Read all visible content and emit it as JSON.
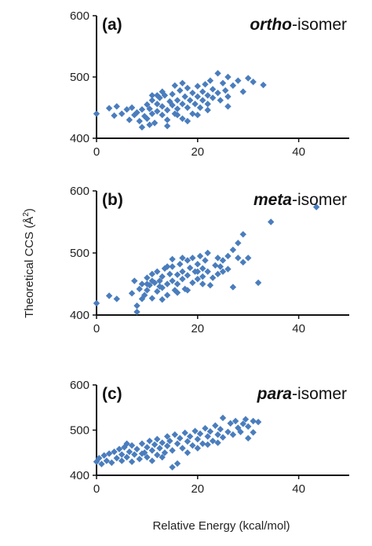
{
  "figure": {
    "xlabel": "Relative Energy (kcal/mol)",
    "ylabel_main": "Theoretical CCS (Å",
    "ylabel_sup": "2",
    "ylabel_close": ")"
  },
  "chart_data": [
    {
      "type": "scatter",
      "panel": "(a)",
      "isomer_italic": "ortho",
      "isomer_suffix": "-isomer",
      "xlim": [
        0,
        50
      ],
      "ylim": [
        400,
        600
      ],
      "xticks": [
        0,
        20,
        40
      ],
      "yticks": [
        400,
        500,
        600
      ],
      "marker_color": "#4a7dbd",
      "points": [
        [
          0,
          440
        ],
        [
          2.5,
          449
        ],
        [
          4,
          452
        ],
        [
          3.5,
          437
        ],
        [
          5,
          440
        ],
        [
          6,
          447
        ],
        [
          6.5,
          430
        ],
        [
          7,
          450
        ],
        [
          8,
          442
        ],
        [
          8.5,
          428
        ],
        [
          9,
          447
        ],
        [
          9.5,
          436
        ],
        [
          10,
          455
        ],
        [
          10,
          432
        ],
        [
          10.5,
          448
        ],
        [
          11,
          462
        ],
        [
          11,
          440
        ],
        [
          11.5,
          425
        ],
        [
          12,
          456
        ],
        [
          12,
          444
        ],
        [
          12.5,
          466
        ],
        [
          13,
          438
        ],
        [
          13,
          452
        ],
        [
          13.5,
          470
        ],
        [
          14,
          446
        ],
        [
          14,
          430
        ],
        [
          14.5,
          460
        ],
        [
          15,
          454
        ],
        [
          15,
          472
        ],
        [
          15.5,
          440
        ],
        [
          16,
          462
        ],
        [
          16,
          448
        ],
        [
          16.5,
          478
        ],
        [
          17,
          456
        ],
        [
          17,
          432
        ],
        [
          17.5,
          468
        ],
        [
          18,
          482
        ],
        [
          18,
          450
        ],
        [
          18.5,
          462
        ],
        [
          19,
          474
        ],
        [
          19,
          440
        ],
        [
          19.5,
          456
        ],
        [
          20,
          468
        ],
        [
          20,
          485
        ],
        [
          20.5,
          450
        ],
        [
          21,
          476
        ],
        [
          21,
          462
        ],
        [
          21.5,
          488
        ],
        [
          22,
          456
        ],
        [
          22,
          470
        ],
        [
          22.5,
          494
        ],
        [
          23,
          466
        ],
        [
          23,
          480
        ],
        [
          24,
          506
        ],
        [
          24,
          474
        ],
        [
          24.5,
          462
        ],
        [
          25,
          490
        ],
        [
          25.5,
          478
        ],
        [
          26,
          500
        ],
        [
          26,
          468
        ],
        [
          27,
          486
        ],
        [
          28,
          494
        ],
        [
          29,
          476
        ],
        [
          30,
          498
        ],
        [
          31,
          492
        ],
        [
          33,
          487
        ],
        [
          12,
          470
        ],
        [
          14,
          420
        ],
        [
          16,
          438
        ],
        [
          18,
          428
        ],
        [
          9,
          418
        ],
        [
          7.5,
          438
        ],
        [
          20,
          438
        ],
        [
          22,
          446
        ],
        [
          26,
          452
        ],
        [
          15.5,
          486
        ],
        [
          13,
          476
        ],
        [
          11,
          470
        ],
        [
          10.5,
          422
        ],
        [
          17,
          490
        ]
      ]
    },
    {
      "type": "scatter",
      "panel": "(b)",
      "isomer_italic": "meta",
      "isomer_suffix": "-isomer",
      "xlim": [
        0,
        50
      ],
      "ylim": [
        400,
        600
      ],
      "xticks": [
        0,
        20,
        40
      ],
      "yticks": [
        400,
        500,
        600
      ],
      "marker_color": "#4a7dbd",
      "points": [
        [
          0,
          419
        ],
        [
          2.5,
          431
        ],
        [
          4,
          426
        ],
        [
          7,
          435
        ],
        [
          7.5,
          455
        ],
        [
          8,
          415
        ],
        [
          8,
          405
        ],
        [
          8.5,
          442
        ],
        [
          9,
          450
        ],
        [
          9.5,
          432
        ],
        [
          10,
          460
        ],
        [
          10,
          440
        ],
        [
          10.5,
          448
        ],
        [
          11,
          427
        ],
        [
          11,
          466
        ],
        [
          11.5,
          452
        ],
        [
          12,
          438
        ],
        [
          12,
          470
        ],
        [
          12.5,
          455
        ],
        [
          13,
          444
        ],
        [
          13,
          462
        ],
        [
          13.5,
          475
        ],
        [
          14,
          450
        ],
        [
          14,
          432
        ],
        [
          14.5,
          466
        ],
        [
          15,
          455
        ],
        [
          15,
          478
        ],
        [
          15.5,
          440
        ],
        [
          16,
          465
        ],
        [
          16,
          450
        ],
        [
          16.5,
          482
        ],
        [
          17,
          458
        ],
        [
          17,
          470
        ],
        [
          17.5,
          442
        ],
        [
          18,
          488
        ],
        [
          18,
          464
        ],
        [
          18.5,
          476
        ],
        [
          19,
          452
        ],
        [
          19,
          492
        ],
        [
          19.5,
          470
        ],
        [
          20,
          482
        ],
        [
          20,
          458
        ],
        [
          20.5,
          495
        ],
        [
          21,
          475
        ],
        [
          21,
          462
        ],
        [
          21.5,
          488
        ],
        [
          22,
          470
        ],
        [
          22.5,
          448
        ],
        [
          23,
          460
        ],
        [
          23.5,
          480
        ],
        [
          24,
          466
        ],
        [
          24,
          492
        ],
        [
          25,
          470
        ],
        [
          25,
          488
        ],
        [
          26,
          495
        ],
        [
          26,
          474
        ],
        [
          27,
          505
        ],
        [
          28,
          516
        ],
        [
          28,
          492
        ],
        [
          29,
          530
        ],
        [
          29,
          485
        ],
        [
          30,
          492
        ],
        [
          27,
          445
        ],
        [
          32,
          452
        ],
        [
          34.5,
          550
        ],
        [
          43.5,
          574
        ],
        [
          13,
          425
        ],
        [
          9,
          426
        ],
        [
          15,
          490
        ],
        [
          18,
          440
        ],
        [
          11,
          455
        ],
        [
          14,
          478
        ],
        [
          17,
          492
        ],
        [
          22,
          500
        ],
        [
          20,
          470
        ],
        [
          12.5,
          446
        ],
        [
          10,
          450
        ],
        [
          16,
          436
        ],
        [
          21,
          450
        ],
        [
          24.5,
          478
        ]
      ]
    },
    {
      "type": "scatter",
      "panel": "(c)",
      "isomer_italic": "para",
      "isomer_suffix": "-isomer",
      "xlim": [
        0,
        50
      ],
      "ylim": [
        400,
        600
      ],
      "xticks": [
        0,
        20,
        40
      ],
      "yticks": [
        400,
        500,
        600
      ],
      "marker_color": "#4a7dbd",
      "points": [
        [
          0,
          430
        ],
        [
          0.5,
          438
        ],
        [
          1,
          425
        ],
        [
          1.5,
          444
        ],
        [
          2,
          432
        ],
        [
          2.5,
          448
        ],
        [
          3,
          428
        ],
        [
          3.5,
          452
        ],
        [
          4,
          438
        ],
        [
          4.5,
          458
        ],
        [
          5,
          432
        ],
        [
          5,
          446
        ],
        [
          5.5,
          462
        ],
        [
          6,
          440
        ],
        [
          6.5,
          452
        ],
        [
          7,
          430
        ],
        [
          7,
          466
        ],
        [
          7.5,
          446
        ],
        [
          8,
          458
        ],
        [
          8.5,
          436
        ],
        [
          9,
          470
        ],
        [
          9.5,
          450
        ],
        [
          10,
          462
        ],
        [
          10,
          440
        ],
        [
          10.5,
          476
        ],
        [
          11,
          455
        ],
        [
          11.5,
          468
        ],
        [
          12,
          445
        ],
        [
          12,
          480
        ],
        [
          12.5,
          460
        ],
        [
          13,
          472
        ],
        [
          13.5,
          450
        ],
        [
          14,
          486
        ],
        [
          14,
          465
        ],
        [
          14.5,
          476
        ],
        [
          15,
          455
        ],
        [
          15.5,
          490
        ],
        [
          16,
          470
        ],
        [
          16.5,
          482
        ],
        [
          17,
          460
        ],
        [
          17.5,
          494
        ],
        [
          18,
          475
        ],
        [
          18.5,
          486
        ],
        [
          19,
          466
        ],
        [
          19.5,
          498
        ],
        [
          20,
          480
        ],
        [
          20.5,
          492
        ],
        [
          21,
          470
        ],
        [
          21.5,
          504
        ],
        [
          22,
          486
        ],
        [
          22.5,
          497
        ],
        [
          23,
          476
        ],
        [
          23.5,
          510
        ],
        [
          24,
          490
        ],
        [
          24.5,
          502
        ],
        [
          25,
          484
        ],
        [
          25,
          527
        ],
        [
          26,
          496
        ],
        [
          26.5,
          515
        ],
        [
          27,
          490
        ],
        [
          27.5,
          520
        ],
        [
          28,
          505
        ],
        [
          28.5,
          496
        ],
        [
          29,
          514
        ],
        [
          29.5,
          524
        ],
        [
          30,
          508
        ],
        [
          31,
          520
        ],
        [
          31,
          495
        ],
        [
          32,
          518
        ],
        [
          15,
          418
        ],
        [
          16,
          426
        ],
        [
          13,
          440
        ],
        [
          11,
          432
        ],
        [
          18,
          450
        ],
        [
          20,
          460
        ],
        [
          22,
          468
        ],
        [
          24,
          472
        ],
        [
          30,
          482
        ],
        [
          9,
          448
        ],
        [
          6,
          470
        ]
      ]
    }
  ]
}
